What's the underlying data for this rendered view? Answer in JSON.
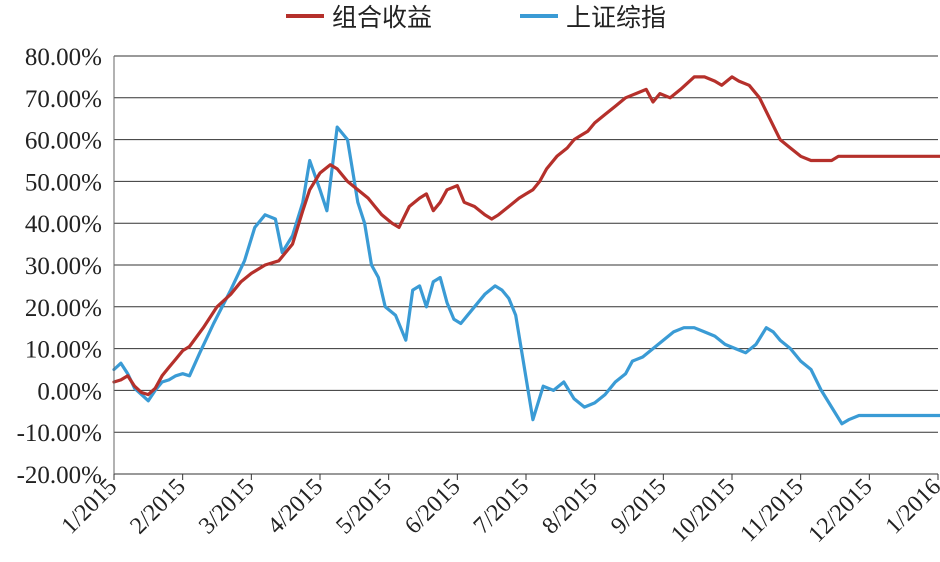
{
  "chart_data": {
    "type": "line",
    "title": "",
    "xlabel": "",
    "ylabel": "",
    "ylim": [
      -20,
      80
    ],
    "y_ticks": [
      "80.00%",
      "70.00%",
      "60.00%",
      "50.00%",
      "40.00%",
      "30.00%",
      "20.00%",
      "10.00%",
      "0.00%",
      "-10.00%",
      "-20.00%"
    ],
    "y_tick_values": [
      80,
      70,
      60,
      50,
      40,
      30,
      20,
      10,
      0,
      -10,
      -20
    ],
    "x_ticks": [
      "1/2015",
      "2/2015",
      "3/2015",
      "4/2015",
      "5/2015",
      "6/2015",
      "7/2015",
      "8/2015",
      "9/2015",
      "10/2015",
      "11/2015",
      "12/2015",
      "1/2016"
    ],
    "grid": true,
    "legend_position": "top",
    "series": [
      {
        "name": "组合收益",
        "color": "#b5302b",
        "x": [
          0,
          0.1,
          0.2,
          0.3,
          0.4,
          0.5,
          0.6,
          0.7,
          0.8,
          0.9,
          1.0,
          1.1,
          1.3,
          1.5,
          1.7,
          1.85,
          2.0,
          2.2,
          2.4,
          2.6,
          2.75,
          2.85,
          3.0,
          3.15,
          3.25,
          3.4,
          3.55,
          3.7,
          3.8,
          3.9,
          4.05,
          4.15,
          4.3,
          4.45,
          4.55,
          4.65,
          4.75,
          4.85,
          5.0,
          5.1,
          5.25,
          5.4,
          5.5,
          5.6,
          5.75,
          5.9,
          6.0,
          6.1,
          6.2,
          6.3,
          6.45,
          6.6,
          6.7,
          6.8,
          6.9,
          7.0,
          7.15,
          7.3,
          7.45,
          7.6,
          7.75,
          7.85,
          7.95,
          8.1,
          8.25,
          8.45,
          8.6,
          8.75,
          8.85,
          9.0,
          9.1,
          9.25,
          9.4,
          9.55,
          9.7,
          9.85,
          10.0,
          10.15,
          10.3,
          10.45,
          10.55,
          10.7,
          10.8,
          10.9,
          11.0,
          11.1,
          11.2,
          11.35,
          11.5,
          11.6,
          11.7,
          11.8,
          11.85,
          11.95,
          12.05,
          12.15,
          12.25,
          12.35,
          12.5
        ],
        "values": [
          2,
          2.5,
          3.5,
          1,
          -0.5,
          -1,
          0.5,
          3.5,
          5.5,
          7.5,
          9.5,
          10.5,
          15,
          20,
          23,
          26,
          28,
          30,
          31,
          35,
          43,
          48,
          52,
          54,
          53,
          50,
          48,
          46,
          44,
          42,
          40,
          39,
          44,
          46,
          47,
          43,
          45,
          48,
          49,
          45,
          44,
          42,
          41,
          42,
          44,
          46,
          47,
          48,
          50,
          53,
          56,
          58,
          60,
          61,
          62,
          64,
          66,
          68,
          70,
          71,
          72,
          69,
          71,
          70,
          72,
          75,
          75,
          74,
          73,
          75,
          74,
          73,
          70,
          65,
          60,
          58,
          56,
          55,
          55,
          55,
          56,
          56,
          56,
          56,
          56,
          56,
          56,
          56,
          56,
          56,
          56,
          56,
          56,
          56,
          56,
          56,
          56,
          56,
          56
        ]
      },
      {
        "name": "上证综指",
        "color": "#3a9bd5",
        "x": [
          0,
          0.1,
          0.2,
          0.3,
          0.4,
          0.5,
          0.6,
          0.7,
          0.8,
          0.9,
          1.0,
          1.1,
          1.25,
          1.45,
          1.7,
          1.9,
          2.05,
          2.2,
          2.35,
          2.45,
          2.6,
          2.75,
          2.85,
          3.0,
          3.1,
          3.25,
          3.4,
          3.55,
          3.65,
          3.75,
          3.85,
          3.95,
          4.1,
          4.25,
          4.35,
          4.45,
          4.55,
          4.65,
          4.75,
          4.85,
          4.95,
          5.05,
          5.15,
          5.25,
          5.4,
          5.55,
          5.65,
          5.75,
          5.85,
          5.95,
          6.1,
          6.25,
          6.4,
          6.55,
          6.7,
          6.85,
          7.0,
          7.15,
          7.3,
          7.45,
          7.55,
          7.7,
          7.85,
          8.0,
          8.15,
          8.3,
          8.45,
          8.6,
          8.75,
          8.9,
          9.05,
          9.2,
          9.35,
          9.5,
          9.6,
          9.7,
          9.85,
          10.0,
          10.15,
          10.3,
          10.45,
          10.6,
          10.7,
          10.85,
          11.0,
          11.15,
          11.3,
          11.45,
          11.6,
          11.75,
          11.9,
          12.05,
          12.2,
          12.35,
          12.5
        ],
        "values": [
          5,
          6.5,
          4,
          0.5,
          -1,
          -2.5,
          0,
          2,
          2.5,
          3.5,
          4,
          3.5,
          9,
          16,
          24,
          31,
          39,
          42,
          41,
          33,
          37,
          45,
          55,
          48,
          43,
          63,
          60,
          45,
          40,
          30,
          27,
          20,
          18,
          12,
          24,
          25,
          20,
          26,
          27,
          21,
          17,
          16,
          18,
          20,
          23,
          25,
          24,
          22,
          18,
          8,
          -7,
          1,
          0,
          2,
          -2,
          -4,
          -3,
          -1,
          2,
          4,
          7,
          8,
          10,
          12,
          14,
          15,
          15,
          14,
          13,
          11,
          10,
          9,
          11,
          15,
          14,
          12,
          10,
          7,
          5,
          0,
          -4,
          -8,
          -7,
          -6,
          -6,
          -6,
          -6,
          -6,
          -6,
          -6,
          -6,
          -6,
          -6,
          -6,
          -6
        ]
      }
    ]
  }
}
